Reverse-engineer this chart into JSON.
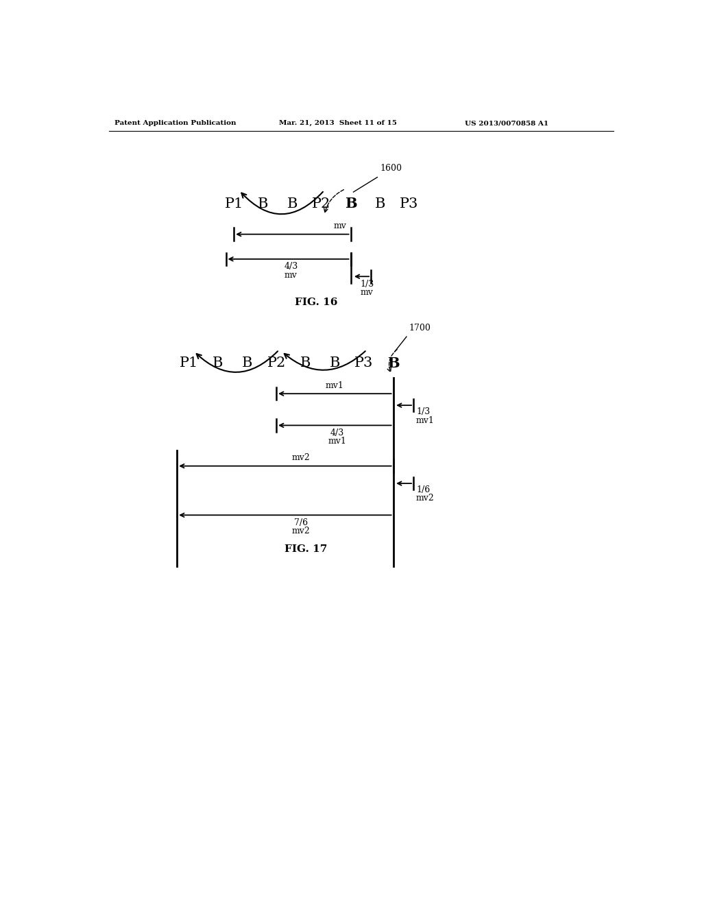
{
  "bg_color": "#ffffff",
  "header_left": "Patent Application Publication",
  "header_mid": "Mar. 21, 2013  Sheet 11 of 15",
  "header_right": "US 2013/0070858 A1",
  "fig16_label": "FIG. 16",
  "fig17_label": "FIG. 17",
  "fig16_ref": "1600",
  "fig17_ref": "1700",
  "fig16_sequence": [
    "P1",
    "B",
    "B",
    "P2",
    "B",
    "B",
    "P3"
  ],
  "fig16_bold_idx": 4,
  "fig17_sequence": [
    "P1",
    "B",
    "B",
    "P2",
    "B",
    "B",
    "P3",
    "B"
  ],
  "fig17_bold_idx": 7,
  "text_color": "#000000",
  "line_color": "#000000"
}
